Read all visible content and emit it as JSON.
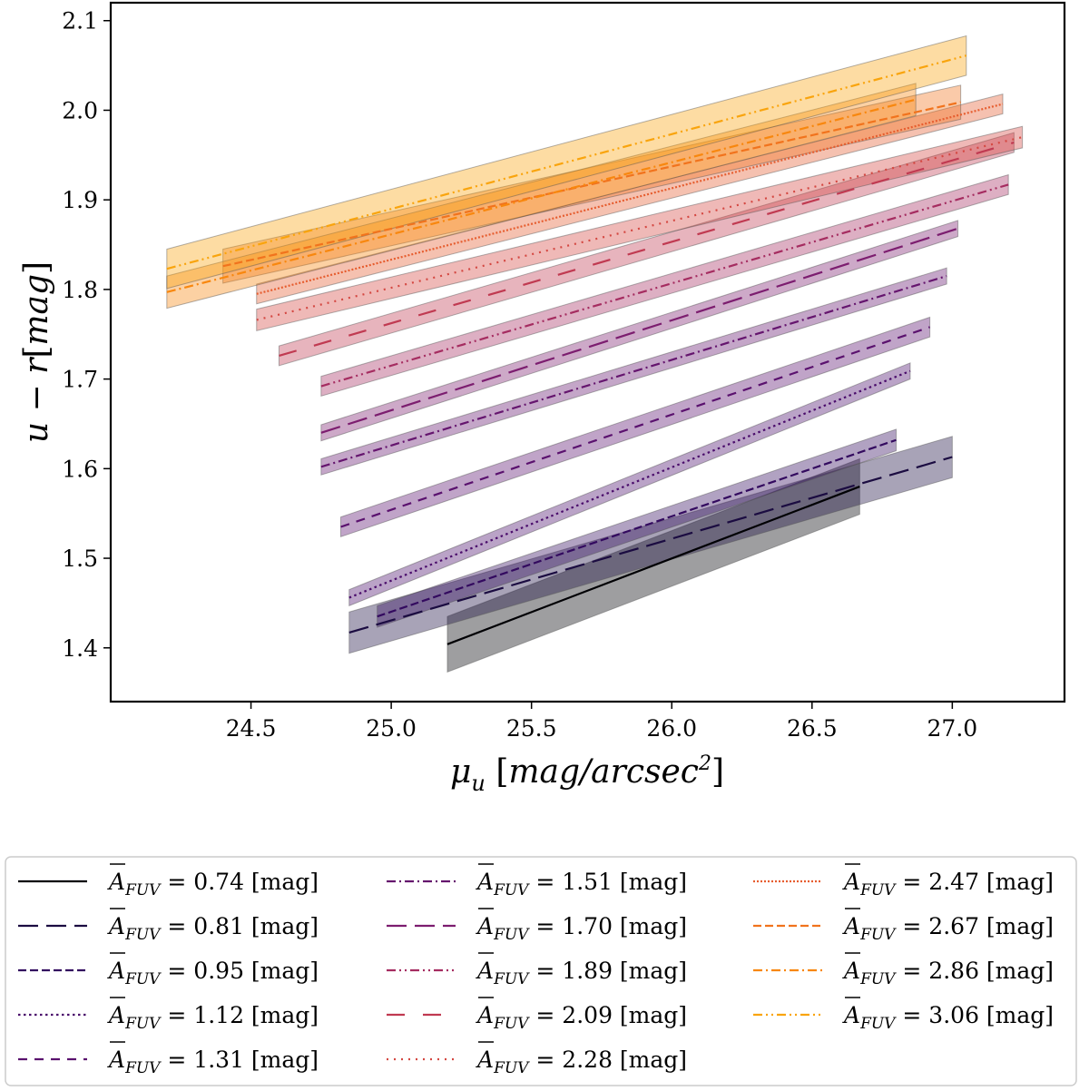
{
  "chart_data": {
    "type": "line",
    "title": "",
    "xlabel": "μu [mag/arcsec²]",
    "ylabel": "u − r[mag]",
    "xlim": [
      24.0,
      27.4
    ],
    "ylim": [
      1.34,
      2.12
    ],
    "xticks": [
      "24.5",
      "25.0",
      "25.5",
      "26.0",
      "26.5",
      "27.0"
    ],
    "yticks": [
      "1.4",
      "1.5",
      "1.6",
      "1.7",
      "1.8",
      "1.9",
      "2.0",
      "2.1"
    ],
    "legend_position": "below",
    "series": [
      {
        "name": "A_FUV = 0.74 [mag]",
        "label_prefix": "A",
        "label_sub": "FUV",
        "label_suffix": " = 0.74 [mag]",
        "color": "#000004",
        "dash": "solid",
        "x": [
          25.2,
          26.67
        ],
        "y": [
          1.404,
          1.58
        ],
        "band_halfwidth": 0.031
      },
      {
        "name": "A_FUV = 0.81 [mag]",
        "label_prefix": "A",
        "label_sub": "FUV",
        "label_suffix": " = 0.81 [mag]",
        "color": "#1b0c41",
        "dash": "long-dash",
        "x": [
          24.85,
          27.0
        ],
        "y": [
          1.417,
          1.613
        ],
        "band_halfwidth": 0.023
      },
      {
        "name": "A_FUV = 0.95 [mag]",
        "label_prefix": "A",
        "label_sub": "FUV",
        "label_suffix": " = 0.95 [mag]",
        "color": "#330a5f",
        "dash": "dashed",
        "x": [
          24.95,
          26.8
        ],
        "y": [
          1.435,
          1.632
        ],
        "band_halfwidth": 0.012
      },
      {
        "name": "A_FUV = 1.12 [mag]",
        "label_prefix": "A",
        "label_sub": "FUV",
        "label_suffix": " = 1.12 [mag]",
        "color": "#4a0c6b",
        "dash": "dotted",
        "x": [
          24.85,
          26.85
        ],
        "y": [
          1.456,
          1.709
        ],
        "band_halfwidth": 0.009
      },
      {
        "name": "A_FUV = 1.31 [mag]",
        "label_prefix": "A",
        "label_sub": "FUV",
        "label_suffix": " = 1.31 [mag]",
        "color": "#5a116e",
        "dash": "short-dash",
        "x": [
          24.82,
          26.92
        ],
        "y": [
          1.535,
          1.758
        ],
        "band_halfwidth": 0.011
      },
      {
        "name": "A_FUV = 1.51 [mag]",
        "label_prefix": "A",
        "label_sub": "FUV",
        "label_suffix": " = 1.51 [mag]",
        "color": "#65156e",
        "dash": "dash-dot",
        "x": [
          24.75,
          26.98
        ],
        "y": [
          1.602,
          1.815
        ],
        "band_halfwidth": 0.009
      },
      {
        "name": "A_FUV = 1.70 [mag]",
        "label_prefix": "A",
        "label_sub": "FUV",
        "label_suffix": " = 1.70 [mag]",
        "color": "#7c1d6f",
        "dash": "long-dash",
        "x": [
          24.75,
          27.02
        ],
        "y": [
          1.64,
          1.868
        ],
        "band_halfwidth": 0.009
      },
      {
        "name": "A_FUV = 1.89 [mag]",
        "label_prefix": "A",
        "label_sub": "FUV",
        "label_suffix": " = 1.89 [mag]",
        "color": "#a52c60",
        "dash": "dash-dot-dot",
        "x": [
          24.75,
          27.2
        ],
        "y": [
          1.692,
          1.917
        ],
        "band_halfwidth": 0.011
      },
      {
        "name": "A_FUV = 2.09 [mag]",
        "label_prefix": "A",
        "label_sub": "FUV",
        "label_suffix": " = 2.09 [mag]",
        "color": "#c03a51",
        "dash": "loose-dash",
        "x": [
          24.6,
          27.22
        ],
        "y": [
          1.726,
          1.964
        ],
        "band_halfwidth": 0.011
      },
      {
        "name": "A_FUV = 2.28 [mag]",
        "label_prefix": "A",
        "label_sub": "FUV",
        "label_suffix": " = 2.28 [mag]",
        "color": "#d44842",
        "dash": "loose-dot",
        "x": [
          24.52,
          27.25
        ],
        "y": [
          1.766,
          1.97
        ],
        "band_halfwidth": 0.012
      },
      {
        "name": "A_FUV = 2.47 [mag]",
        "label_prefix": "A",
        "label_sub": "FUV",
        "label_suffix": " = 2.47 [mag]",
        "color": "#e65d2f",
        "dash": "dense-dot",
        "x": [
          24.52,
          27.18
        ],
        "y": [
          1.795,
          2.007
        ],
        "band_halfwidth": 0.011
      },
      {
        "name": "A_FUV = 2.67 [mag]",
        "label_prefix": "A",
        "label_sub": "FUV",
        "label_suffix": " = 2.67 [mag]",
        "color": "#f1731d",
        "dash": "dashed",
        "x": [
          24.4,
          27.03
        ],
        "y": [
          1.826,
          2.009
        ],
        "band_halfwidth": 0.019
      },
      {
        "name": "A_FUV = 2.86 [mag]",
        "label_prefix": "A",
        "label_sub": "FUV",
        "label_suffix": " = 2.86 [mag]",
        "color": "#f8870e",
        "dash": "dash-dot",
        "x": [
          24.2,
          26.87
        ],
        "y": [
          1.797,
          2.012
        ],
        "band_halfwidth": 0.018
      },
      {
        "name": "A_FUV = 3.06 [mag]",
        "label_prefix": "A",
        "label_sub": "FUV",
        "label_suffix": " = 3.06 [mag]",
        "color": "#f9a40d",
        "dash": "dash-dot-dot",
        "x": [
          24.2,
          27.05
        ],
        "y": [
          1.823,
          2.061
        ],
        "band_halfwidth": 0.022
      }
    ]
  }
}
